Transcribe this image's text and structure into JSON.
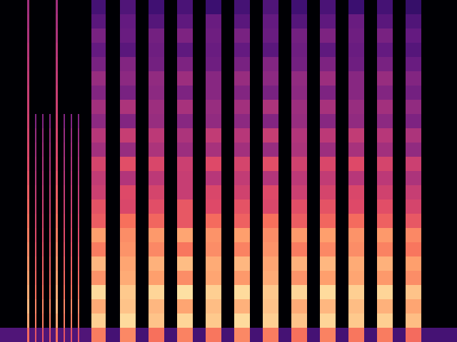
{
  "chart_data": {
    "type": "heatmap",
    "x": [
      0,
      38,
      41,
      49,
      51,
      59,
      61,
      69,
      71,
      78,
      81,
      89,
      91,
      99,
      101,
      109,
      111,
      128,
      148,
      168,
      190,
      208,
      230,
      248,
      270,
      288,
      310,
      328,
      350,
      368,
      390,
      408,
      430,
      448,
      470,
      488,
      510,
      528,
      550,
      568,
      590,
      640
    ],
    "y": [
      0,
      20,
      40,
      60,
      80,
      100,
      120,
      140,
      160,
      180,
      200,
      220,
      240,
      260,
      280,
      300,
      320,
      340,
      360,
      380,
      400,
      420,
      440,
      460,
      480
    ],
    "xlim": [
      0,
      640
    ],
    "ylim": [
      0,
      480
    ],
    "zlim": [
      -80,
      0
    ],
    "tick_labels": false,
    "grid": false,
    "z": [
      [
        -60,
        -25,
        -60,
        -30,
        -60,
        -30,
        -60,
        -30,
        -60,
        -25,
        -60,
        -30,
        -60,
        -30,
        -60,
        -30,
        -60,
        -22,
        -62,
        -20,
        -62,
        -24,
        -62,
        -21,
        -62,
        -23,
        -62,
        -20,
        -62,
        -22,
        -62,
        -24,
        -62,
        -21,
        -62,
        -23,
        -62,
        -22,
        -62,
        -25,
        -62
      ],
      [
        -80,
        -15,
        -80,
        -22,
        -80,
        -22,
        -80,
        -22,
        -80,
        -15,
        -80,
        -22,
        -80,
        -22,
        -80,
        -22,
        -80,
        -8,
        -80,
        -6,
        -80,
        -10,
        -80,
        -7,
        -80,
        -9,
        -80,
        -6,
        -80,
        -8,
        -80,
        -10,
        -80,
        -7,
        -80,
        -9,
        -80,
        -8,
        -80,
        -11,
        -80
      ],
      [
        -80,
        -12,
        -80,
        -20,
        -80,
        -20,
        -80,
        -20,
        -80,
        -12,
        -80,
        -20,
        -80,
        -20,
        -80,
        -20,
        -80,
        -14,
        -80,
        -10,
        -80,
        -12,
        -80,
        -15,
        -80,
        -11,
        -80,
        -13,
        -80,
        -10,
        -80,
        -14,
        -80,
        -12,
        -80,
        -11,
        -80,
        -13,
        -80,
        -15,
        -80
      ],
      [
        -80,
        -14,
        -80,
        -24,
        -80,
        -24,
        -80,
        -24,
        -80,
        -14,
        -80,
        -24,
        -80,
        -24,
        -80,
        -24,
        -80,
        -6,
        -80,
        -9,
        -80,
        -7,
        -80,
        -5,
        -80,
        -8,
        -80,
        -6,
        -80,
        -9,
        -80,
        -7,
        -80,
        -6,
        -80,
        -8,
        -80,
        -7,
        -80,
        -10,
        -80
      ],
      [
        -80,
        -16,
        -80,
        -26,
        -80,
        -26,
        -80,
        -26,
        -80,
        -16,
        -80,
        -26,
        -80,
        -26,
        -80,
        -26,
        -80,
        -18,
        -80,
        -14,
        -80,
        -16,
        -80,
        -19,
        -80,
        -15,
        -80,
        -17,
        -80,
        -14,
        -80,
        -18,
        -80,
        -16,
        -80,
        -15,
        -80,
        -17,
        -80,
        -19,
        -80
      ],
      [
        -80,
        -18,
        -80,
        -28,
        -80,
        -28,
        -80,
        -28,
        -80,
        -18,
        -80,
        -28,
        -80,
        -28,
        -80,
        -28,
        -80,
        -12,
        -80,
        -15,
        -80,
        -13,
        -80,
        -11,
        -80,
        -14,
        -80,
        -12,
        -80,
        -15,
        -80,
        -13,
        -80,
        -12,
        -80,
        -14,
        -80,
        -13,
        -80,
        -16,
        -80
      ],
      [
        -80,
        -20,
        -80,
        -30,
        -80,
        -30,
        -80,
        -30,
        -80,
        -20,
        -80,
        -30,
        -80,
        -30,
        -80,
        -30,
        -80,
        -22,
        -80,
        -18,
        -80,
        -20,
        -80,
        -23,
        -80,
        -19,
        -80,
        -21,
        -80,
        -18,
        -80,
        -22,
        -80,
        -20,
        -80,
        -19,
        -80,
        -21,
        -80,
        -23,
        -80
      ],
      [
        -80,
        -22,
        -80,
        -32,
        -80,
        -32,
        -80,
        -32,
        -80,
        -22,
        -80,
        -32,
        -80,
        -32,
        -80,
        -32,
        -80,
        -16,
        -80,
        -19,
        -80,
        -17,
        -80,
        -15,
        -80,
        -18,
        -80,
        -16,
        -80,
        -19,
        -80,
        -17,
        -80,
        -16,
        -80,
        -18,
        -80,
        -17,
        -80,
        -20,
        -80
      ],
      [
        -80,
        -24,
        -80,
        -34,
        -80,
        -34,
        -80,
        -34,
        -80,
        -24,
        -80,
        -34,
        -80,
        -34,
        -80,
        -34,
        -80,
        -28,
        -80,
        -24,
        -80,
        -26,
        -80,
        -29,
        -80,
        -25,
        -80,
        -27,
        -80,
        -24,
        -80,
        -28,
        -80,
        -26,
        -80,
        -25,
        -80,
        -27,
        -80,
        -29,
        -80
      ],
      [
        -80,
        -26,
        -80,
        -36,
        -80,
        -36,
        -80,
        -36,
        -80,
        -26,
        -80,
        -36,
        -80,
        -36,
        -80,
        -36,
        -80,
        -30,
        -80,
        -33,
        -80,
        -31,
        -80,
        -29,
        -80,
        -32,
        -80,
        -30,
        -80,
        -33,
        -80,
        -31,
        -80,
        -30,
        -80,
        -32,
        -80,
        -31,
        -80,
        -34,
        -80
      ],
      [
        -80,
        -28,
        -80,
        -38,
        -80,
        -38,
        -80,
        -38,
        -80,
        -28,
        -80,
        -38,
        -80,
        -38,
        -80,
        -38,
        -80,
        -36,
        -80,
        -32,
        -80,
        -34,
        -80,
        -37,
        -80,
        -33,
        -80,
        -35,
        -80,
        -32,
        -80,
        -36,
        -80,
        -34,
        -80,
        -33,
        -80,
        -35,
        -80,
        -37,
        -80
      ],
      [
        -80,
        -30,
        -80,
        -40,
        -80,
        -40,
        -80,
        -40,
        -80,
        -30,
        -80,
        -40,
        -80,
        -40,
        -80,
        -40,
        -80,
        -38,
        -80,
        -41,
        -80,
        -39,
        -80,
        -37,
        -80,
        -40,
        -80,
        -38,
        -80,
        -41,
        -80,
        -39,
        -80,
        -38,
        -80,
        -40,
        -80,
        -39,
        -80,
        -42,
        -80
      ],
      [
        -80,
        -32,
        -80,
        -42,
        -80,
        -42,
        -80,
        -42,
        -80,
        -32,
        -80,
        -42,
        -80,
        -42,
        -80,
        -42,
        -80,
        -34,
        -80,
        -31,
        -80,
        -33,
        -80,
        -36,
        -80,
        -32,
        -80,
        -34,
        -80,
        -31,
        -80,
        -35,
        -80,
        -33,
        -80,
        -32,
        -80,
        -34,
        -80,
        -36,
        -80
      ],
      [
        -80,
        -33,
        -80,
        -44,
        -80,
        -44,
        -80,
        -44,
        -80,
        -33,
        -80,
        -44,
        -80,
        -44,
        -80,
        -44,
        -80,
        -44,
        -80,
        -46,
        -80,
        -42,
        -80,
        -45,
        -80,
        -43,
        -80,
        -44,
        -80,
        -46,
        -80,
        -42,
        -80,
        -45,
        -80,
        -43,
        -80,
        -44,
        -80,
        -47,
        -80
      ],
      [
        -80,
        -34,
        -80,
        -46,
        -80,
        -46,
        -80,
        -46,
        -80,
        -34,
        -80,
        -46,
        -80,
        -46,
        -80,
        -46,
        -80,
        -40,
        -80,
        -37,
        -80,
        -39,
        -80,
        -42,
        -80,
        -38,
        -80,
        -40,
        -80,
        -37,
        -80,
        -41,
        -80,
        -39,
        -80,
        -38,
        -80,
        -40,
        -80,
        -42,
        -80
      ],
      [
        -80,
        -35,
        -80,
        -50,
        -80,
        -50,
        -80,
        -50,
        -80,
        -35,
        -80,
        -50,
        -80,
        -50,
        -80,
        -50,
        -80,
        -48,
        -80,
        -50,
        -80,
        -46,
        -80,
        -49,
        -80,
        -47,
        -80,
        -48,
        -80,
        -50,
        -80,
        -46,
        -80,
        -49,
        -80,
        -47,
        -80,
        -48,
        -80,
        -51,
        -80
      ],
      [
        -80,
        -36,
        -80,
        -80,
        -80,
        -80,
        -80,
        -80,
        -80,
        -36,
        -80,
        -80,
        -80,
        -80,
        -80,
        -80,
        -80,
        -44,
        -80,
        -42,
        -80,
        -45,
        -80,
        -43,
        -80,
        -46,
        -80,
        -44,
        -80,
        -42,
        -80,
        -45,
        -80,
        -43,
        -80,
        -46,
        -80,
        -44,
        -80,
        -47,
        -80
      ],
      [
        -80,
        -37,
        -80,
        -80,
        -80,
        -80,
        -80,
        -80,
        -80,
        -37,
        -80,
        -80,
        -80,
        -80,
        -80,
        -80,
        -80,
        -50,
        -80,
        -52,
        -80,
        -48,
        -80,
        -51,
        -80,
        -49,
        -80,
        -50,
        -80,
        -52,
        -80,
        -48,
        -80,
        -51,
        -80,
        -49,
        -80,
        -50,
        -80,
        -53,
        -80
      ],
      [
        -80,
        -38,
        -80,
        -80,
        -80,
        -80,
        -80,
        -80,
        -80,
        -38,
        -80,
        -80,
        -80,
        -80,
        -80,
        -80,
        -80,
        -46,
        -80,
        -48,
        -80,
        -47,
        -80,
        -45,
        -80,
        -49,
        -80,
        -46,
        -80,
        -48,
        -80,
        -47,
        -80,
        -45,
        -80,
        -49,
        -80,
        -46,
        -80,
        -50,
        -80
      ],
      [
        -80,
        -39,
        -80,
        -80,
        -80,
        -80,
        -80,
        -80,
        -80,
        -39,
        -80,
        -80,
        -80,
        -80,
        -80,
        -80,
        -80,
        -52,
        -80,
        -50,
        -80,
        -53,
        -80,
        -51,
        -80,
        -54,
        -80,
        -52,
        -80,
        -50,
        -80,
        -53,
        -80,
        -51,
        -80,
        -54,
        -80,
        -52,
        -80,
        -55,
        -80
      ],
      [
        -80,
        -40,
        -80,
        -80,
        -80,
        -80,
        -80,
        -80,
        -80,
        -40,
        -80,
        -80,
        -80,
        -80,
        -80,
        -80,
        -80,
        -56,
        -80,
        -58,
        -80,
        -54,
        -80,
        -57,
        -80,
        -55,
        -80,
        -56,
        -80,
        -58,
        -80,
        -54,
        -80,
        -57,
        -80,
        -55,
        -80,
        -56,
        -80,
        -59,
        -80
      ],
      [
        -80,
        -42,
        -80,
        -80,
        -80,
        -80,
        -80,
        -80,
        -80,
        -42,
        -80,
        -80,
        -80,
        -80,
        -80,
        -80,
        -80,
        -52,
        -80,
        -55,
        -80,
        -53,
        -80,
        -51,
        -80,
        -54,
        -80,
        -52,
        -80,
        -55,
        -80,
        -53,
        -80,
        -51,
        -80,
        -54,
        -80,
        -52,
        -80,
        -56,
        -80
      ],
      [
        -80,
        -43,
        -80,
        -80,
        -80,
        -80,
        -80,
        -80,
        -80,
        -43,
        -80,
        -80,
        -80,
        -80,
        -80,
        -80,
        -80,
        -58,
        -80,
        -56,
        -80,
        -59,
        -80,
        -57,
        -80,
        -55,
        -80,
        -58,
        -80,
        -56,
        -80,
        -59,
        -80,
        -57,
        -80,
        -55,
        -80,
        -58,
        -80,
        -60,
        -80
      ],
      [
        -80,
        -44,
        -80,
        -80,
        -80,
        -80,
        -80,
        -80,
        -80,
        -44,
        -80,
        -80,
        -80,
        -80,
        -80,
        -80,
        -80,
        -62,
        -80,
        -60,
        -80,
        -63,
        -80,
        -61,
        -80,
        -64,
        -80,
        -62,
        -80,
        -60,
        -80,
        -63,
        -80,
        -61,
        -80,
        -64,
        -80,
        -62,
        -80,
        -65,
        -80
      ]
    ]
  }
}
